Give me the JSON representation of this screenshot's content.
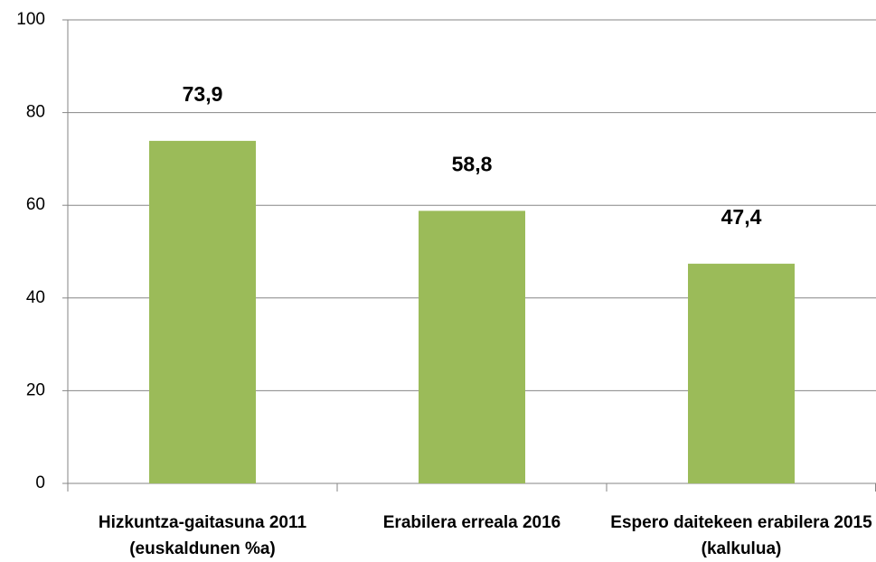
{
  "chart_data": {
    "type": "bar",
    "categories": [
      "Hizkuntza-gaitasuna 2011 (euskaldunen %a)",
      "Erabilera erreala 2016",
      "Espero daitekeen erabilera 2015 (kalkulua)"
    ],
    "values": [
      73.9,
      58.8,
      47.4
    ],
    "value_labels": [
      "73,9",
      "58,8",
      "47,4"
    ],
    "color": "#9bbb59",
    "ylim": [
      0,
      100
    ],
    "yticks": [
      0,
      20,
      40,
      60,
      80,
      100
    ],
    "grid": true
  }
}
